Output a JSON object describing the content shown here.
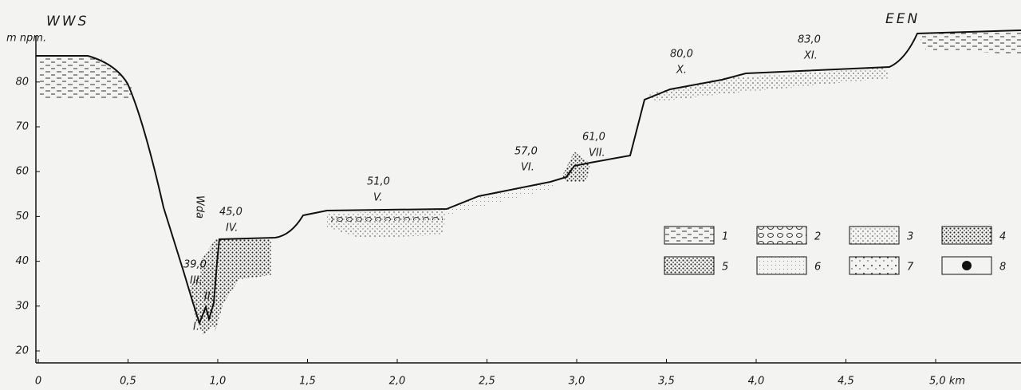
{
  "header": {
    "left": "WWS",
    "right": "EEN"
  },
  "y_axis": {
    "label": "m npm.",
    "ticks": [
      "20",
      "30",
      "40",
      "50",
      "60",
      "70",
      "80"
    ]
  },
  "x_axis": {
    "ticks": [
      "0",
      "0,5",
      "1,0",
      "1,5",
      "2,0",
      "2,5",
      "3,0",
      "3,5",
      "4,0",
      "4,5",
      "5,0 km"
    ]
  },
  "river": "Wda",
  "lower_terraces": [
    "I.",
    "II."
  ],
  "terraces": [
    {
      "height": "39,0",
      "label": "III."
    },
    {
      "height": "45,0",
      "label": "IV."
    },
    {
      "height": "51,0",
      "label": "V."
    },
    {
      "height": "57,0",
      "label": "VI."
    },
    {
      "height": "61,0",
      "label": "VII."
    },
    {
      "height": "80,0",
      "label": "X."
    },
    {
      "height": "83,0",
      "label": "XI."
    }
  ],
  "legend": [
    "1",
    "2",
    "3",
    "4",
    "5",
    "6",
    "7",
    "8"
  ]
}
